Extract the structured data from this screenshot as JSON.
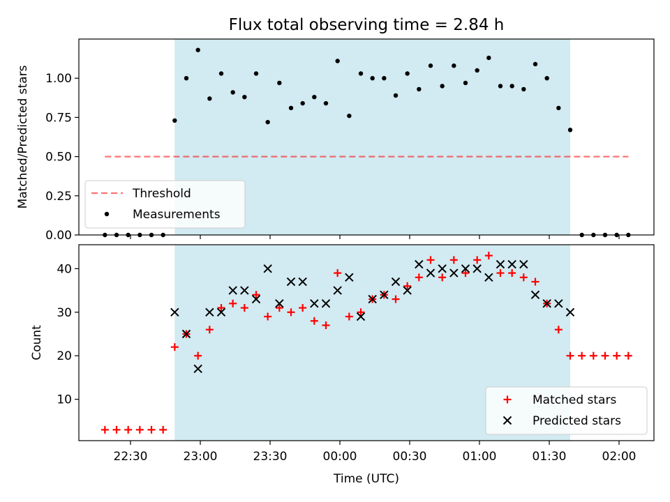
{
  "title": "Flux total observing time = 2.84 h",
  "colors": {
    "shade": "#add8e6",
    "threshold": "#ff0000",
    "measurement": "#000000",
    "matched": "#ff0000",
    "predicted": "#000000"
  },
  "chart_data": [
    {
      "type": "scatter",
      "ylabel": "Matched/Predicted stars",
      "ylim": [
        0,
        1.25
      ],
      "yticks": [
        {
          "value": 0,
          "label": "0.00"
        },
        {
          "value": 0.25,
          "label": "0.25"
        },
        {
          "value": 0.5,
          "label": "0.50"
        },
        {
          "value": 0.75,
          "label": "0.75"
        },
        {
          "value": 1.0,
          "label": "1.00"
        }
      ],
      "shaded_span": {
        "from": "22:49",
        "to": "01:39"
      },
      "threshold_line": {
        "label": "Threshold",
        "y": 0.5,
        "from": "22:19",
        "to": "02:04",
        "style": "dashed"
      },
      "legend_position": "lower-left",
      "series": [
        {
          "name": "Measurements",
          "marker": "dot",
          "points": [
            [
              "22:19",
              0
            ],
            [
              "22:24",
              0
            ],
            [
              "22:29",
              0
            ],
            [
              "22:34",
              0
            ],
            [
              "22:39",
              0
            ],
            [
              "22:44",
              0
            ],
            [
              "22:49",
              0.73
            ],
            [
              "22:54",
              1.0
            ],
            [
              "22:59",
              1.18
            ],
            [
              "23:04",
              0.87
            ],
            [
              "23:09",
              1.03
            ],
            [
              "23:14",
              0.91
            ],
            [
              "23:19",
              0.88
            ],
            [
              "23:24",
              1.03
            ],
            [
              "23:29",
              0.72
            ],
            [
              "23:34",
              0.97
            ],
            [
              "23:39",
              0.81
            ],
            [
              "23:44",
              0.84
            ],
            [
              "23:49",
              0.88
            ],
            [
              "23:54",
              0.84
            ],
            [
              "23:59",
              1.11
            ],
            [
              "00:04",
              0.76
            ],
            [
              "00:09",
              1.03
            ],
            [
              "00:14",
              1.0
            ],
            [
              "00:19",
              1.0
            ],
            [
              "00:24",
              0.89
            ],
            [
              "00:29",
              1.03
            ],
            [
              "00:34",
              0.93
            ],
            [
              "00:39",
              1.08
            ],
            [
              "00:44",
              0.95
            ],
            [
              "00:49",
              1.08
            ],
            [
              "00:54",
              0.97
            ],
            [
              "00:59",
              1.05
            ],
            [
              "01:04",
              1.13
            ],
            [
              "01:09",
              0.95
            ],
            [
              "01:14",
              0.95
            ],
            [
              "01:19",
              0.93
            ],
            [
              "01:24",
              1.09
            ],
            [
              "01:29",
              1.0
            ],
            [
              "01:34",
              0.81
            ],
            [
              "01:39",
              0.67
            ],
            [
              "01:44",
              0
            ],
            [
              "01:49",
              0
            ],
            [
              "01:54",
              0
            ],
            [
              "01:59",
              0
            ],
            [
              "02:04",
              0
            ]
          ]
        }
      ]
    },
    {
      "type": "scatter",
      "xlabel": "Time (UTC)",
      "ylabel": "Count",
      "ylim": [
        0.5,
        45.5
      ],
      "yticks": [
        {
          "value": 10,
          "label": "10"
        },
        {
          "value": 20,
          "label": "20"
        },
        {
          "value": 30,
          "label": "30"
        },
        {
          "value": 40,
          "label": "40"
        }
      ],
      "xticks": [
        "22:30",
        "23:00",
        "23:30",
        "00:00",
        "00:30",
        "01:00",
        "01:30",
        "02:00"
      ],
      "shaded_span": {
        "from": "22:49",
        "to": "01:39"
      },
      "legend_position": "lower-right",
      "series": [
        {
          "name": "Matched stars",
          "marker": "plus",
          "points": [
            [
              "22:19",
              3
            ],
            [
              "22:24",
              3
            ],
            [
              "22:29",
              3
            ],
            [
              "22:34",
              3
            ],
            [
              "22:39",
              3
            ],
            [
              "22:44",
              3
            ],
            [
              "22:49",
              22
            ],
            [
              "22:54",
              25
            ],
            [
              "22:59",
              20
            ],
            [
              "23:04",
              26
            ],
            [
              "23:09",
              31
            ],
            [
              "23:14",
              32
            ],
            [
              "23:19",
              31
            ],
            [
              "23:24",
              34
            ],
            [
              "23:29",
              29
            ],
            [
              "23:34",
              31
            ],
            [
              "23:39",
              30
            ],
            [
              "23:44",
              31
            ],
            [
              "23:49",
              28
            ],
            [
              "23:54",
              27
            ],
            [
              "23:59",
              39
            ],
            [
              "00:04",
              29
            ],
            [
              "00:09",
              30
            ],
            [
              "00:14",
              33
            ],
            [
              "00:19",
              34
            ],
            [
              "00:24",
              33
            ],
            [
              "00:29",
              36
            ],
            [
              "00:34",
              38
            ],
            [
              "00:39",
              42
            ],
            [
              "00:44",
              38
            ],
            [
              "00:49",
              42
            ],
            [
              "00:54",
              39
            ],
            [
              "00:59",
              42
            ],
            [
              "01:04",
              43
            ],
            [
              "01:09",
              39
            ],
            [
              "01:14",
              39
            ],
            [
              "01:19",
              38
            ],
            [
              "01:24",
              37
            ],
            [
              "01:29",
              32
            ],
            [
              "01:34",
              26
            ],
            [
              "01:39",
              20
            ],
            [
              "01:44",
              20
            ],
            [
              "01:49",
              20
            ],
            [
              "01:54",
              20
            ],
            [
              "01:59",
              20
            ],
            [
              "02:04",
              20
            ]
          ]
        },
        {
          "name": "Predicted stars",
          "marker": "x",
          "points": [
            [
              "22:49",
              30
            ],
            [
              "22:54",
              25
            ],
            [
              "22:59",
              17
            ],
            [
              "23:04",
              30
            ],
            [
              "23:09",
              30
            ],
            [
              "23:14",
              35
            ],
            [
              "23:19",
              35
            ],
            [
              "23:24",
              33
            ],
            [
              "23:29",
              40
            ],
            [
              "23:34",
              32
            ],
            [
              "23:39",
              37
            ],
            [
              "23:44",
              37
            ],
            [
              "23:49",
              32
            ],
            [
              "23:54",
              32
            ],
            [
              "23:59",
              35
            ],
            [
              "00:04",
              38
            ],
            [
              "00:09",
              29
            ],
            [
              "00:14",
              33
            ],
            [
              "00:19",
              34
            ],
            [
              "00:24",
              37
            ],
            [
              "00:29",
              35
            ],
            [
              "00:34",
              41
            ],
            [
              "00:39",
              39
            ],
            [
              "00:44",
              40
            ],
            [
              "00:49",
              39
            ],
            [
              "00:54",
              40
            ],
            [
              "00:59",
              40
            ],
            [
              "01:04",
              38
            ],
            [
              "01:09",
              41
            ],
            [
              "01:14",
              41
            ],
            [
              "01:19",
              41
            ],
            [
              "01:24",
              34
            ],
            [
              "01:29",
              32
            ],
            [
              "01:34",
              32
            ],
            [
              "01:39",
              30
            ]
          ]
        }
      ]
    }
  ]
}
